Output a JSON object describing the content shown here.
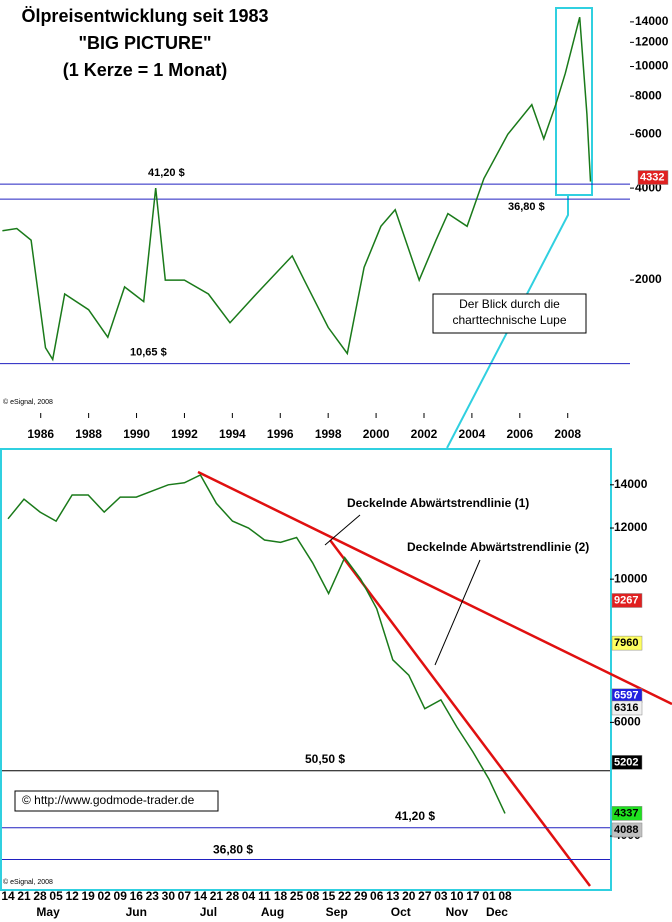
{
  "chart_data": [
    {
      "type": "line",
      "title": "Ölpreisentwicklung seit 1983",
      "subtitle": "\"BIG PICTURE\"",
      "note": "(1 Kerze = 1 Monat)",
      "log_scale": true,
      "color": "#1a7a1a",
      "x": [
        1984.4,
        1985.0,
        1985.6,
        1986.2,
        1986.5,
        1987.0,
        1988.0,
        1988.8,
        1989.5,
        1990.3,
        1990.8,
        1991.2,
        1992.0,
        1993.0,
        1993.9,
        1995.0,
        1996.5,
        1997.0,
        1998.0,
        1998.8,
        1999.5,
        2000.2,
        2000.8,
        2001.8,
        2002.5,
        2003.0,
        2003.8,
        2004.5,
        2005.5,
        2006.5,
        2007.0,
        2007.5,
        2007.9,
        2008.5,
        2008.8,
        2008.95
      ],
      "values": [
        2900,
        2950,
        2700,
        1200,
        1100,
        1800,
        1600,
        1300,
        1900,
        1700,
        4000,
        2000,
        2000,
        1800,
        1450,
        1800,
        2400,
        2000,
        1400,
        1150,
        2200,
        3000,
        3400,
        2000,
        2700,
        3300,
        3000,
        4300,
        6000,
        7500,
        5800,
        7500,
        9500,
        14500,
        7000,
        4200
      ],
      "xlim": [
        1984.3,
        2010.6
      ],
      "xticks": [
        1986,
        1988,
        1990,
        1992,
        1994,
        1996,
        1998,
        2000,
        2002,
        2004,
        2006,
        2008
      ],
      "ylim": [
        780,
        15900
      ],
      "yticks": [
        2000,
        4000,
        6000,
        8000,
        10000,
        12000,
        14000
      ],
      "levels": [
        {
          "value": 4120,
          "label": "41,20 $"
        },
        {
          "value": 3680,
          "label": "36,80 $"
        },
        {
          "value": 1065,
          "label": "10,65 $"
        }
      ],
      "price_tags": [
        {
          "value": 4332,
          "color": "#e02020"
        }
      ],
      "callout": "Der Blick durch die charttechnische Lupe",
      "source": "© eSignal, 2008"
    },
    {
      "type": "line",
      "log_scale": true,
      "color": "#1a7a1a",
      "groups": [
        {
          "name": "May",
          "days": [
            "14",
            "21",
            "28",
            "05",
            "12",
            "19"
          ],
          "values": [
            12400,
            13300,
            12700,
            12300,
            13500,
            13500
          ]
        },
        {
          "name": "Jun",
          "days": [
            "02",
            "09",
            "16",
            "23",
            "30"
          ],
          "values": [
            12700,
            13400,
            13400,
            13700,
            14000
          ]
        },
        {
          "name": "Jul",
          "days": [
            "07",
            "14",
            "21",
            "28"
          ],
          "values": [
            14100,
            14500,
            13100,
            12300
          ]
        },
        {
          "name": "Aug",
          "days": [
            "04",
            "11",
            "18",
            "25"
          ],
          "values": [
            12000,
            11500,
            11400,
            11600
          ]
        },
        {
          "name": "Sep",
          "days": [
            "08",
            "15",
            "22",
            "29"
          ],
          "values": [
            10600,
            9500,
            10800,
            10000
          ]
        },
        {
          "name": "Oct",
          "days": [
            "06",
            "13",
            "20",
            "27"
          ],
          "values": [
            9000,
            7500,
            7100,
            6300
          ]
        },
        {
          "name": "Nov",
          "days": [
            "03",
            "10",
            "17"
          ],
          "values": [
            6500,
            5900,
            5400
          ]
        },
        {
          "name": "Dec",
          "days": [
            "01",
            "08"
          ],
          "values": [
            4900,
            4337
          ]
        }
      ],
      "ylim": [
        3300,
        15850
      ],
      "yticks": [
        4000,
        6000,
        10000,
        12000,
        14000
      ],
      "levels": [
        {
          "value": 5050,
          "label": "50,50 $"
        },
        {
          "value": 4120,
          "label": "41,20 $"
        },
        {
          "value": 3680,
          "label": "36,80 $"
        }
      ],
      "price_tags": [
        {
          "value": 9267,
          "color": "#e02020"
        },
        {
          "value": 7960,
          "color": "#ffff60"
        },
        {
          "value": 6597,
          "color": "#2020e0"
        },
        {
          "value": 6316,
          "color": "#f0f0f0"
        },
        {
          "value": 5202,
          "color": "#000000"
        },
        {
          "value": 4337,
          "color": "#20e020"
        },
        {
          "value": 4088,
          "color": "#c0c0c0"
        }
      ],
      "annotations": [
        "Deckelnde Abwärtstrendlinie (1)",
        "Deckelnde Abwärtstrendlinie (2)"
      ],
      "website": "© http://www.godmode-trader.de",
      "source": "© eSignal, 2008"
    }
  ]
}
